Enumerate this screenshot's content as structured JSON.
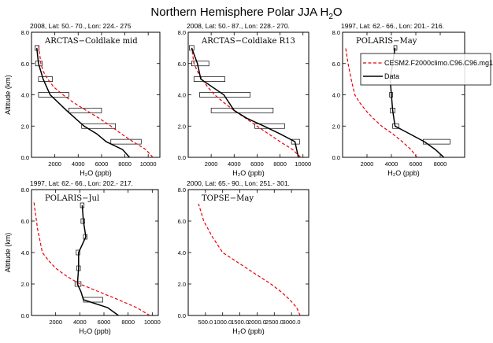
{
  "title_main": "Northern Hemisphere Polar JJA H",
  "title_sub": "2",
  "title_tail": "O",
  "ylabel": "Altitude (km)",
  "xlabel": "H₂O (ppb)",
  "legend": {
    "model_label": "CESM2.F2000climo.C96.C96.mg1",
    "data_label": "Data"
  },
  "colors": {
    "model": "#e8000b",
    "data": "#000000"
  },
  "chart_data": [
    {
      "type": "line",
      "header": "2008, Lat:  50.- 70., Lon: 224.- 275",
      "name": "ARCTAS−Coldlake mid",
      "xlim": [
        0,
        11000
      ],
      "ylim": [
        0,
        8
      ],
      "xticks": [
        2000,
        4000,
        6000,
        8000,
        10000
      ],
      "xticklabels": [
        "2000",
        "4000",
        "6000",
        "8000",
        "10000"
      ],
      "yticks": [
        0,
        2,
        4,
        6,
        8
      ],
      "yticklabels": [
        "0.0",
        "2.0",
        "4.0",
        "6.0",
        "8.0"
      ],
      "model": {
        "x": [
          10400,
          9800,
          8700,
          7700,
          6800,
          5800,
          4700,
          3600,
          2700,
          1900,
          1400,
          1000,
          800,
          600
        ],
        "y": [
          0,
          0.5,
          1,
          1.5,
          2,
          2.5,
          3,
          3.5,
          4,
          4.5,
          5,
          5.5,
          6,
          7.2
        ]
      },
      "data": {
        "x": [
          8400,
          7800,
          6400,
          5600,
          4500,
          3000,
          1600,
          1000,
          600,
          450
        ],
        "y": [
          0,
          0.5,
          1,
          1.5,
          2,
          3,
          4,
          5,
          6,
          7
        ]
      },
      "boxes": [
        {
          "y": 1,
          "lo": 6800,
          "hi": 9400
        },
        {
          "y": 2,
          "lo": 4300,
          "hi": 7200
        },
        {
          "y": 3,
          "lo": 3200,
          "hi": 6000
        },
        {
          "y": 4,
          "lo": 600,
          "hi": 3200
        },
        {
          "y": 5,
          "lo": 600,
          "hi": 1800
        },
        {
          "y": 6,
          "lo": 350,
          "hi": 900
        },
        {
          "y": 7,
          "lo": 300,
          "hi": 650
        }
      ],
      "show_legend": false
    },
    {
      "type": "line",
      "header": "2008, Lat:  50.- 87., Lon: 228.- 270.",
      "name": "ARCTAS−Coldlake R13",
      "xlim": [
        0,
        10500
      ],
      "ylim": [
        0,
        8
      ],
      "xticks": [
        2000,
        4000,
        6000,
        8000,
        10000
      ],
      "xticklabels": [
        "2000",
        "4000",
        "6000",
        "8000",
        "10000"
      ],
      "yticks": [
        0,
        2,
        4,
        6,
        8
      ],
      "yticklabels": [
        "0.0",
        "2.0",
        "4.0",
        "6.0",
        "8.0"
      ],
      "model": {
        "x": [
          9800,
          9100,
          8000,
          7000,
          6000,
          5000,
          4000,
          3100,
          2300,
          1700,
          1200,
          800,
          500,
          300
        ],
        "y": [
          0,
          0.5,
          1,
          1.5,
          2,
          2.5,
          3,
          3.5,
          4,
          4.5,
          5,
          5.5,
          6,
          7
        ]
      },
      "data": {
        "x": [
          9600,
          9300,
          8000,
          6600,
          5100,
          4000,
          3100,
          1100,
          800,
          300
        ],
        "y": [
          0,
          1,
          1.5,
          2,
          2.5,
          3,
          4,
          5,
          6,
          7
        ]
      },
      "boxes": [
        {
          "y": 1,
          "lo": 9000,
          "hi": 9700
        },
        {
          "y": 2,
          "lo": 5800,
          "hi": 8400
        },
        {
          "y": 3,
          "lo": 2000,
          "hi": 7400
        },
        {
          "y": 4,
          "lo": 1000,
          "hi": 5400
        },
        {
          "y": 5,
          "lo": 500,
          "hi": 3200
        },
        {
          "y": 6,
          "lo": 300,
          "hi": 1800
        },
        {
          "y": 7,
          "lo": 100,
          "hi": 500
        }
      ],
      "show_legend": false
    },
    {
      "type": "line",
      "header": "1997, Lat:  62.- 66., Lon: 201.- 216.",
      "name": "POLARIS−May",
      "xlim": [
        0,
        10000
      ],
      "ylim": [
        0,
        8
      ],
      "xticks": [
        2000,
        4000,
        6000,
        8000
      ],
      "xticklabels": [
        "2000",
        "4000",
        "6000",
        "8000"
      ],
      "yticks": [
        0,
        2,
        4,
        6,
        8
      ],
      "yticklabels": [
        "0.0",
        "2.0",
        "4.0",
        "6.0",
        "8.0"
      ],
      "model": {
        "x": [
          6100,
          5600,
          4900,
          4100,
          3200,
          2500,
          1900,
          1400,
          1000,
          700,
          450,
          250
        ],
        "y": [
          0,
          0.5,
          1,
          1.5,
          2,
          2.5,
          3,
          3.5,
          4,
          5,
          6,
          7
        ]
      },
      "data": {
        "x": [
          8300,
          7600,
          6700,
          4300,
          4100,
          4000,
          3900,
          4100,
          4300
        ],
        "y": [
          0,
          0.5,
          1,
          2,
          3,
          4,
          5,
          6,
          7
        ]
      },
      "boxes": [
        {
          "y": 1,
          "lo": 6600,
          "hi": 8800
        },
        {
          "y": 2,
          "lo": 4100,
          "hi": 4600
        },
        {
          "y": 3,
          "lo": 3900,
          "hi": 4300
        },
        {
          "y": 4,
          "lo": 3850,
          "hi": 4100
        },
        {
          "y": 7,
          "lo": 4200,
          "hi": 4450
        }
      ],
      "show_legend": true
    },
    {
      "type": "line",
      "header": "1997, Lat:  62.- 66., Lon: 202.- 217.",
      "name": "POLARIS−Jul",
      "xlim": [
        0,
        10500
      ],
      "ylim": [
        0,
        8
      ],
      "xticks": [
        2000,
        4000,
        6000,
        8000,
        10000
      ],
      "xticklabels": [
        "2000",
        "4000",
        "6000",
        "8000",
        "10000"
      ],
      "yticks": [
        0,
        2,
        4,
        6,
        8
      ],
      "yticklabels": [
        "0.0",
        "2.0",
        "4.0",
        "6.0",
        "8.0"
      ],
      "model": {
        "x": [
          9800,
          8700,
          7200,
          5600,
          4000,
          2900,
          2000,
          1400,
          900,
          500,
          200
        ],
        "y": [
          0,
          0.5,
          1,
          1.5,
          2,
          2.5,
          3,
          3.5,
          4,
          5.5,
          7.2
        ]
      },
      "data": {
        "x": [
          7200,
          6300,
          4300,
          4100,
          3800,
          3900,
          3900,
          4500,
          4300,
          4200
        ],
        "y": [
          0,
          0.5,
          1,
          1.5,
          2,
          3,
          4,
          5,
          6,
          7
        ]
      },
      "boxes": [
        {
          "y": 1,
          "lo": 4300,
          "hi": 5900
        },
        {
          "y": 2,
          "lo": 3600,
          "hi": 4100
        },
        {
          "y": 3,
          "lo": 3750,
          "hi": 4050
        },
        {
          "y": 4,
          "lo": 3700,
          "hi": 4000
        },
        {
          "y": 5,
          "lo": 4300,
          "hi": 4600
        },
        {
          "y": 6,
          "lo": 4100,
          "hi": 4400
        },
        {
          "y": 7,
          "lo": 4050,
          "hi": 4350
        }
      ],
      "show_legend": false
    },
    {
      "type": "line",
      "header": "2000, Lat:  65.- 90., Lon: 251.- 301.",
      "name": "TOPSE−May",
      "xlim": [
        0,
        3500
      ],
      "ylim": [
        0,
        8
      ],
      "xticks": [
        500,
        1000,
        1500,
        2000,
        2500,
        3000
      ],
      "xticklabels": [
        "500.0",
        "1000.0",
        "1500.0",
        "2000.0",
        "2500.0",
        "3000.0"
      ],
      "yticks": [
        0,
        2,
        4,
        6,
        8
      ],
      "yticklabels": [
        "0.0",
        "2.0",
        "4.0",
        "6.0",
        "8.0"
      ],
      "model": {
        "x": [
          3250,
          3150,
          2950,
          2700,
          2400,
          2050,
          1700,
          1350,
          1000,
          700,
          450,
          300
        ],
        "y": [
          0,
          0.5,
          1,
          1.5,
          2,
          2.5,
          3,
          3.5,
          4,
          5,
          6,
          7.1
        ]
      },
      "data": {
        "x": [],
        "y": []
      },
      "boxes": [],
      "show_legend": false
    }
  ]
}
